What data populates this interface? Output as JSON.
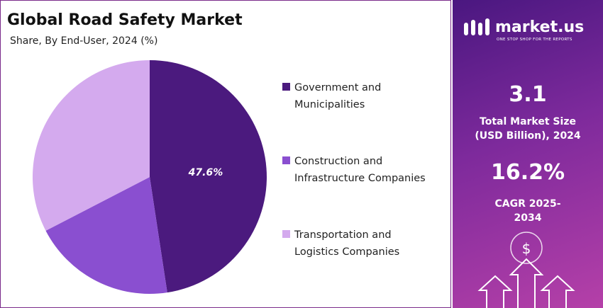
{
  "chart_data": {
    "type": "pie",
    "title": "Global Road Safety Market",
    "subtitle": "Share, By End-User, 2024 (%)",
    "categories": [
      "Government and Municipalities",
      "Construction and Infrastructure Companies",
      "Transportation and Logistics Companies"
    ],
    "values": [
      47.6,
      19.8,
      32.6
    ],
    "value_labels": [
      "47.6%",
      null,
      null
    ],
    "colors": [
      "#4b1a7e",
      "#8a4fd0",
      "#d4aaee"
    ],
    "legend": "right"
  },
  "panel": {
    "brand": "market.us",
    "tagline": "ONE STOP SHOP FOR THE REPORTS",
    "stats": [
      {
        "value": "3.1",
        "label": "Total Market Size (USD Billion), 2024"
      },
      {
        "value": "16.2%",
        "label": "CAGR 2025-2034"
      }
    ]
  }
}
